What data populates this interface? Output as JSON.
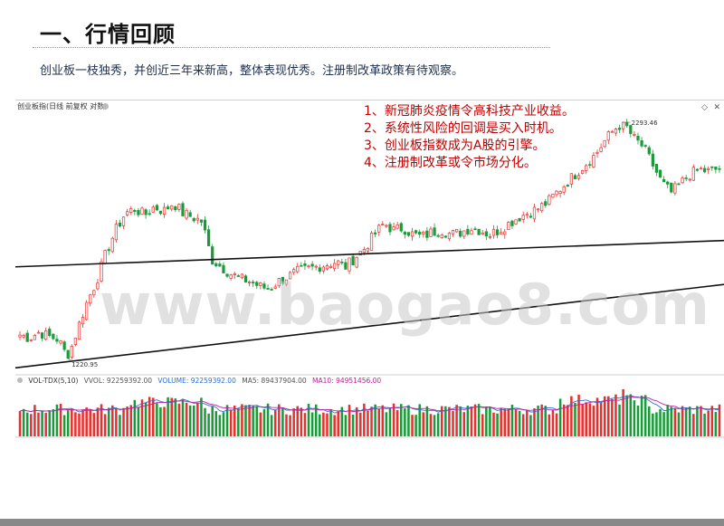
{
  "slide": {
    "title": "一、行情回顾",
    "subtitle": "创业板一枝独秀，并创近三年来新高，整体表现优秀。注册制改革政策有待观察。"
  },
  "chart_header": {
    "name": "创业板指(日线 前复权 对数)"
  },
  "annotations": [
    "1、新冠肺炎疫情令高科技产业收益。",
    "2、系统性风险的回调是买入时机。",
    "3、创业板指数成为A股的引擎。",
    "4、注册制改革或令市场分化。"
  ],
  "watermark": "www.baogao8.com",
  "volume_header": {
    "indicator": "VOL-TDX(5,10)",
    "vvol": "VVOL: 92259392.00",
    "volume": "VOLUME: 92259392.00",
    "ma5": "MA5: 89437904.00",
    "ma10": "MA10: 94951456.00"
  },
  "colors": {
    "up": "#e8312f",
    "down": "#1a9b3a",
    "annotation": "#c00000",
    "ma5": "#2a6fd6",
    "ma10": "#c0209a"
  },
  "chart_data": {
    "type": "candlestick",
    "title": "创业板指(日线 前复权 对数)",
    "scale": "log",
    "high_label": "2293.46",
    "low_label": "1220.95",
    "approx_path": [
      1300,
      1290,
      1310,
      1295,
      1285,
      1220.95,
      1320,
      1420,
      1500,
      1620,
      1720,
      1800,
      1820,
      1790,
      1830,
      1810,
      1850,
      1800,
      1780,
      1760,
      1590,
      1560,
      1530,
      1510,
      1500,
      1480,
      1470,
      1500,
      1520,
      1540,
      1550,
      1560,
      1570,
      1580,
      1560,
      1600,
      1640,
      1700,
      1750,
      1720,
      1730,
      1700,
      1690,
      1710,
      1720,
      1700,
      1710,
      1730,
      1720,
      1700,
      1720,
      1750,
      1780,
      1800,
      1820,
      1850,
      1900,
      1950,
      2000,
      2050,
      2100,
      2180,
      2250,
      2293.46,
      2200,
      2150,
      2050,
      1950,
      1900,
      1950,
      2000,
      2020,
      2010,
      2030
    ],
    "trendlines": [
      {
        "label": "upper",
        "from": [
          0,
          0.35
        ],
        "to": [
          1,
          0.29
        ]
      },
      {
        "label": "lower",
        "from": [
          0,
          0.58
        ],
        "to": [
          1,
          0.39
        ]
      }
    ]
  }
}
